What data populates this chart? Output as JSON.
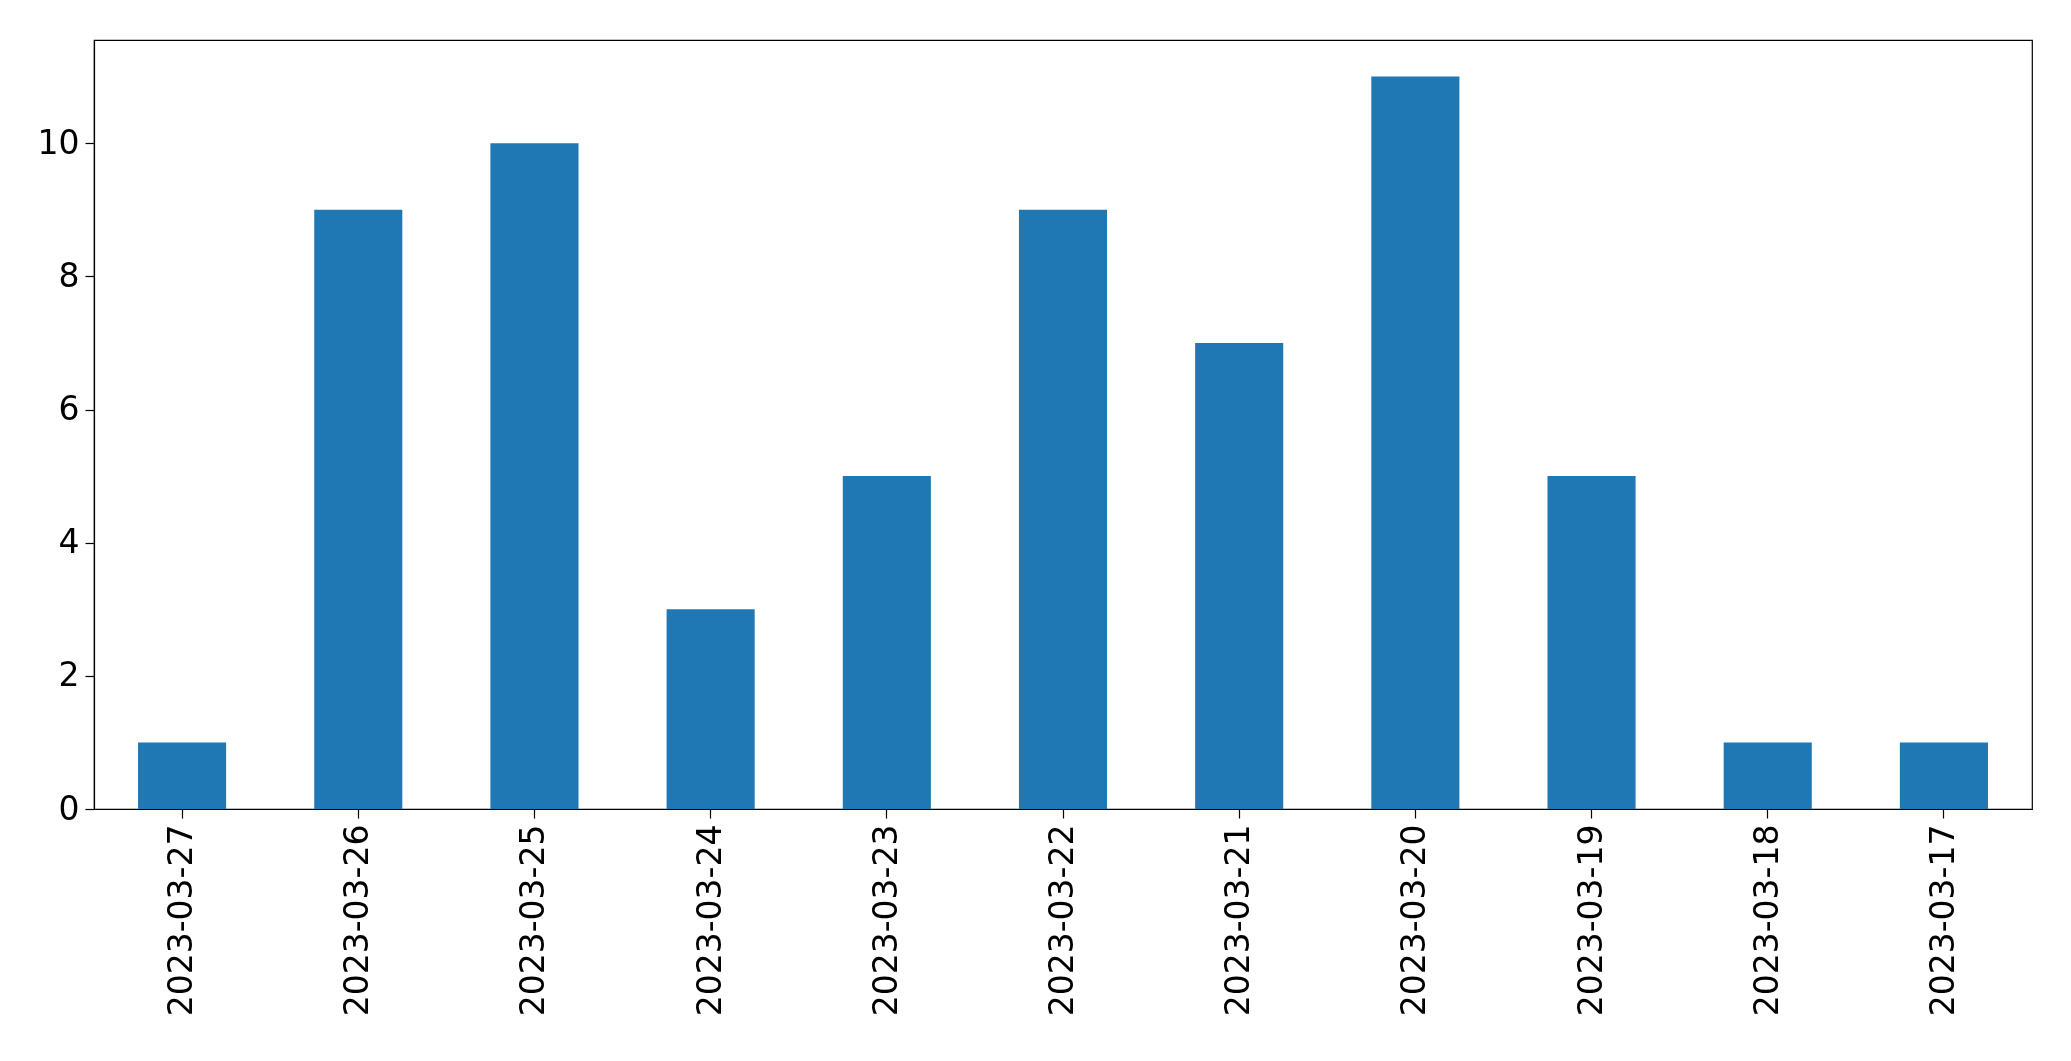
{
  "chart_data": {
    "type": "bar",
    "categories": [
      "2023-03-27",
      "2023-03-26",
      "2023-03-25",
      "2023-03-24",
      "2023-03-23",
      "2023-03-22",
      "2023-03-21",
      "2023-03-20",
      "2023-03-19",
      "2023-03-18",
      "2023-03-17"
    ],
    "values": [
      1,
      9,
      10,
      3,
      5,
      9,
      7,
      11,
      5,
      1,
      1
    ],
    "color": "#1f77b4",
    "ylim": [
      0,
      11.55
    ],
    "yticks": [
      0,
      2,
      4,
      6,
      8,
      10
    ],
    "grid": false
  }
}
